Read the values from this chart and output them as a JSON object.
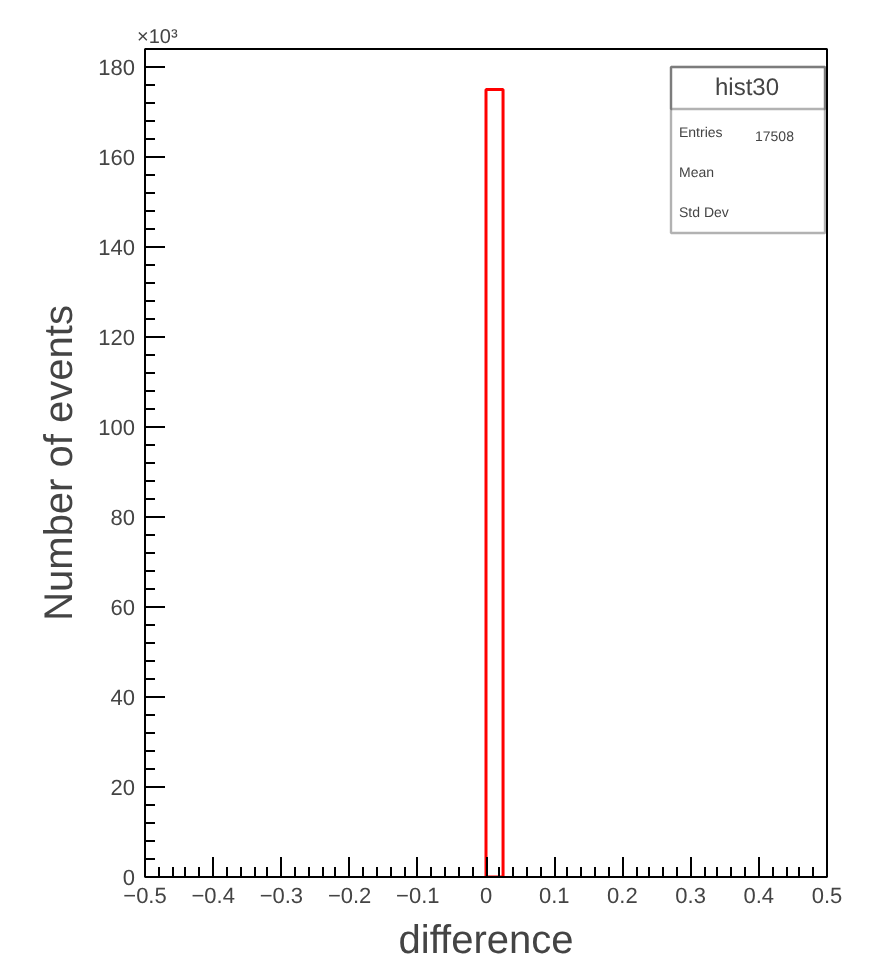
{
  "chart_data": {
    "type": "histogram",
    "xlabel": "difference",
    "ylabel": "Number of events",
    "bins": [
      0,
      0.025
    ],
    "values": [
      175
    ],
    "color": "#ff0000",
    "xlim": [
      -0.5,
      0.5
    ],
    "xticks": [
      -0.5,
      -0.4,
      -0.3,
      -0.2,
      -0.1,
      0,
      0.1,
      0.2,
      0.3,
      0.4,
      0.5
    ],
    "ylim": [
      0,
      184
    ],
    "yticks": [
      0,
      20,
      40,
      60,
      80,
      100,
      120,
      140,
      160,
      180
    ],
    "grid": false,
    "annotations": [
      "×10³",
      "hist30",
      "Entries",
      "17508",
      "Mean",
      "Std Dev"
    ]
  }
}
